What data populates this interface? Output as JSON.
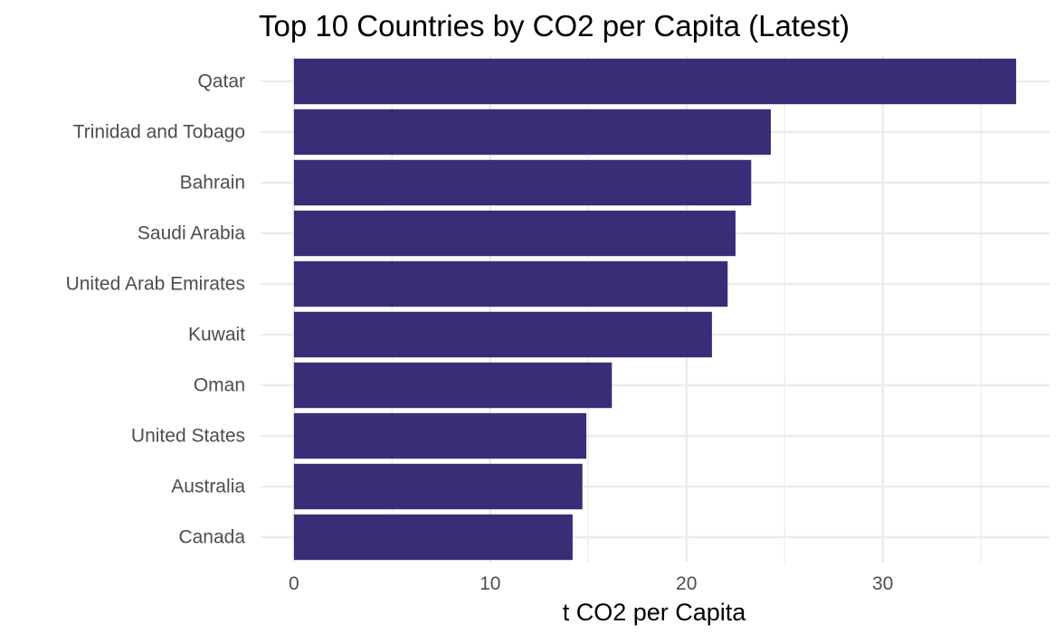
{
  "chart_data": {
    "type": "bar",
    "orientation": "horizontal",
    "title": "Top 10 Countries by CO2 per Capita (Latest)",
    "xlabel": "t CO2 per Capita",
    "ylabel": "",
    "categories": [
      "Qatar",
      "Trinidad and Tobago",
      "Bahrain",
      "Saudi Arabia",
      "United Arab Emirates",
      "Kuwait",
      "Oman",
      "United States",
      "Australia",
      "Canada"
    ],
    "values": [
      36.8,
      24.3,
      23.3,
      22.5,
      22.1,
      21.3,
      16.2,
      14.9,
      14.7,
      14.2
    ],
    "xlim": [
      -1.7,
      38.5
    ],
    "xticks": [
      0,
      10,
      20,
      30
    ],
    "xtick_labels": [
      "0",
      "10",
      "20",
      "30"
    ],
    "minor_grid_x": [
      5,
      15,
      25,
      35
    ],
    "grid": true,
    "legend": "none",
    "colors": {
      "bar": "#3A2D77",
      "grid": "#EBEBEB",
      "tick_text": "#4D4D4D",
      "title_text": "#000000",
      "background": "#FFFFFF"
    }
  }
}
